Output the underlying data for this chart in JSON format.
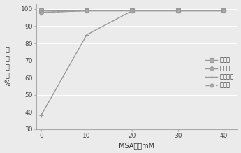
{
  "x": [
    0,
    10,
    20,
    30,
    40
  ],
  "series_order": [
    "硫酸根",
    "磷酸根",
    "琥珀酸根",
    "草酸根"
  ],
  "series": {
    "硫酸根": [
      99,
      99,
      99,
      99,
      99
    ],
    "磷酸根": [
      98,
      99,
      99,
      99,
      99
    ],
    "琥珀酸根": [
      38,
      85,
      99,
      99,
      99
    ],
    "草酸根": [
      98,
      99,
      99,
      99,
      99
    ]
  },
  "line_color": "#999999",
  "marker_face": "#aaaaaa",
  "xlabel": "MSA浓度mM",
  "ylabel_lines": [
    "提",
    "取",
    "效",
    "率",
    "%"
  ],
  "xlim": [
    -1,
    43
  ],
  "ylim": [
    30,
    103
  ],
  "yticks": [
    30,
    40,
    50,
    60,
    70,
    80,
    90,
    100
  ],
  "xticks": [
    0,
    10,
    20,
    30,
    40
  ],
  "background_color": "#ebebeb",
  "plot_bg": "#ebebeb",
  "grid_color": "#ffffff"
}
